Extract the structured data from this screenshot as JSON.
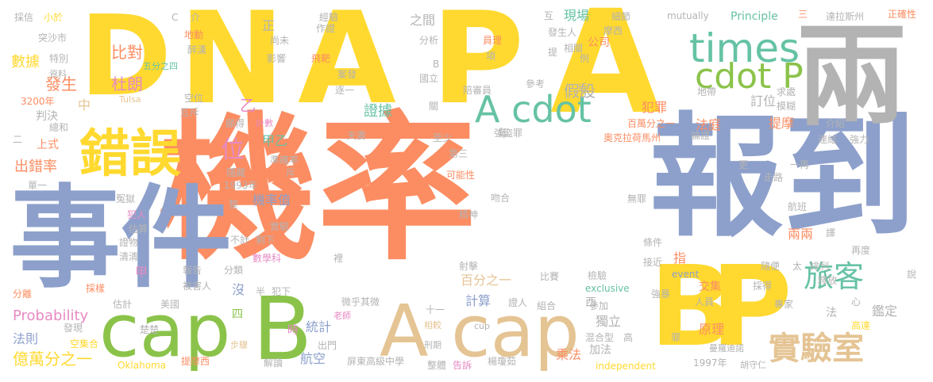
{
  "palette": {
    "orange": "#fc8d62",
    "blue": "#8da0cb",
    "green": "#8bc34a",
    "yellow": "#ffd92f",
    "tan": "#e5c494",
    "pink": "#e78ac3",
    "gray": "#b3b3b3",
    "teal": "#66c2a5"
  },
  "words": [
    {
      "text": "機率"
    },
    {
      "text": "報到"
    },
    {
      "text": "事件"
    },
    {
      "text": "D"
    },
    {
      "text": "N"
    },
    {
      "text": "A"
    },
    {
      "text": "P"
    },
    {
      "text": "A"
    },
    {
      "text": "兩"
    },
    {
      "text": "B"
    },
    {
      "text": "P"
    },
    {
      "text": "cap"
    },
    {
      "text": "B"
    },
    {
      "text": "A cap"
    },
    {
      "text": "錯誤"
    },
    {
      "text": "times"
    },
    {
      "text": "cdot P"
    },
    {
      "text": "A cdot"
    },
    {
      "text": "實驗室"
    },
    {
      "text": "旅客"
    },
    {
      "text": "位"
    },
    {
      "text": "比對"
    },
    {
      "text": "杜朗"
    },
    {
      "text": "發生"
    },
    {
      "text": "數據"
    },
    {
      "text": "假設"
    },
    {
      "text": "犯罪"
    },
    {
      "text": "法庭"
    },
    {
      "text": "提摩"
    },
    {
      "text": "訂位"
    },
    {
      "text": "證據"
    },
    {
      "text": "甲乙"
    },
    {
      "text": "乙"
    },
    {
      "text": "出錯率"
    },
    {
      "text": "上式"
    },
    {
      "text": "判決"
    },
    {
      "text": "中"
    },
    {
      "text": "機率值"
    },
    {
      "text": "統計"
    },
    {
      "text": "計算"
    },
    {
      "text": "百分之一"
    },
    {
      "text": "航空"
    },
    {
      "text": "乘法"
    },
    {
      "text": "加法"
    },
    {
      "text": "原理"
    },
    {
      "text": "獨立"
    },
    {
      "text": "交集"
    },
    {
      "text": "鑑定"
    },
    {
      "text": "兩兩"
    },
    {
      "text": "法則"
    },
    {
      "text": "億萬分之一"
    },
    {
      "text": "Probability"
    },
    {
      "text": "現場"
    },
    {
      "text": "公司"
    },
    {
      "text": "年"
    },
    {
      "text": "甲"
    },
    {
      "text": "沒"
    },
    {
      "text": "四"
    },
    {
      "text": "時"
    },
    {
      "text": "西"
    },
    {
      "text": "法"
    },
    {
      "text": "指"
    },
    {
      "text": "正"
    },
    {
      "text": "之間"
    },
    {
      "text": "Principle"
    },
    {
      "text": "奧克拉荷馬州"
    },
    {
      "text": "達拉斯州"
    },
    {
      "text": "正確性"
    },
    {
      "text": "mutually"
    },
    {
      "text": "exclusive"
    },
    {
      "text": "independent"
    },
    {
      "text": "event"
    },
    {
      "text": "Oklahoma"
    },
    {
      "text": "Tulsa"
    },
    {
      "text": "cup"
    },
    {
      "text": "3200年"
    },
    {
      "text": "1993年"
    },
    {
      "text": "1997年"
    },
    {
      "text": "屏東高級中學"
    },
    {
      "text": "楊瓊茹"
    },
    {
      "text": "胡守仁"
    },
    {
      "text": "曼羅迪諾"
    },
    {
      "text": "提摩西"
    },
    {
      "text": "空集合"
    },
    {
      "text": "發現"
    },
    {
      "text": "楚楚"
    },
    {
      "text": "步驟"
    },
    {
      "text": "出門"
    },
    {
      "text": "解讀"
    },
    {
      "text": "整體"
    },
    {
      "text": "告訴"
    },
    {
      "text": "刑期"
    },
    {
      "text": "相較"
    },
    {
      "text": "老師"
    },
    {
      "text": "美國"
    },
    {
      "text": "被害人"
    },
    {
      "text": "分類"
    },
    {
      "text": "數學科"
    },
    {
      "text": "不計"
    },
    {
      "text": "剩下"
    },
    {
      "text": "實驗"
    },
    {
      "text": "犯人"
    },
    {
      "text": "估算"
    },
    {
      "text": "證物"
    },
    {
      "text": "清清"
    },
    {
      "text": "報告"
    },
    {
      "text": "採樣"
    },
    {
      "text": "估計"
    },
    {
      "text": "分離"
    },
    {
      "text": "冤獄"
    },
    {
      "text": "單一"
    },
    {
      "text": "隱藏"
    },
    {
      "text": "準確率"
    },
    {
      "text": "斥"
    },
    {
      "text": "顯得"
    },
    {
      "text": "計數"
    },
    {
      "text": "互斥"
    },
    {
      "text": "空位"
    },
    {
      "text": "醉漢"
    },
    {
      "text": "五分之四"
    },
    {
      "text": "地動"
    },
    {
      "text": "介"
    },
    {
      "text": "C"
    },
    {
      "text": "採信"
    },
    {
      "text": "小於"
    },
    {
      "text": "突沙市"
    },
    {
      "text": "特別"
    },
    {
      "text": "資料"
    },
    {
      "text": "總和"
    },
    {
      "text": "二"
    },
    {
      "text": "尚未"
    },
    {
      "text": "影響"
    },
    {
      "text": "飛靶"
    },
    {
      "text": "作證"
    },
    {
      "text": "經驗"
    },
    {
      "text": "案發"
    },
    {
      "text": "逐一"
    },
    {
      "text": "國立"
    },
    {
      "text": "陪審員"
    },
    {
      "text": "參考"
    },
    {
      "text": "強盜罪"
    },
    {
      "text": "夫妻"
    },
    {
      "text": "至少"
    },
    {
      "text": "第三"
    },
    {
      "text": "可能性"
    },
    {
      "text": "吻合"
    },
    {
      "text": "精神"
    },
    {
      "text": "射擊"
    },
    {
      "text": "微乎其微"
    },
    {
      "text": "十一"
    },
    {
      "text": "證人"
    },
    {
      "text": "組合"
    },
    {
      "text": "參加"
    },
    {
      "text": "比賽"
    },
    {
      "text": "檢驗"
    },
    {
      "text": "混合型"
    },
    {
      "text": "高"
    },
    {
      "text": "無罪"
    },
    {
      "text": "條件"
    },
    {
      "text": "接近"
    },
    {
      "text": "強暴"
    },
    {
      "text": "人員"
    },
    {
      "text": "專家"
    },
    {
      "text": "高達"
    },
    {
      "text": "釋放"
    },
    {
      "text": "採得"
    },
    {
      "text": "隨便"
    },
    {
      "text": "太"
    },
    {
      "text": "排列"
    },
    {
      "text": "再度"
    },
    {
      "text": "航班"
    },
    {
      "text": "走路"
    },
    {
      "text": "一再"
    },
    {
      "text": "更"
    },
    {
      "text": "論證"
    },
    {
      "text": "連結"
    },
    {
      "text": "強力"
    },
    {
      "text": "介紹"
    },
    {
      "text": "模糊"
    },
    {
      "text": "求處"
    },
    {
      "text": "地帶"
    },
    {
      "text": "百萬分之一"
    },
    {
      "text": "細節"
    },
    {
      "text": "摩西"
    },
    {
      "text": "互"
    },
    {
      "text": "三"
    },
    {
      "text": "相關"
    },
    {
      "text": "發生人"
    },
    {
      "text": "分析"
    },
    {
      "text": "員理"
    },
    {
      "text": "項"
    },
    {
      "text": "提"
    },
    {
      "text": "例"
    },
    {
      "text": "近"
    },
    {
      "text": "關"
    },
    {
      "text": "B"
    },
    {
      "text": "譯"
    },
    {
      "text": "心"
    },
    {
      "text": "說"
    },
    {
      "text": "罪"
    },
    {
      "text": "半"
    },
    {
      "text": "犯下"
    },
    {
      "text": "裡"
    },
    {
      "text": "整"
    }
  ]
}
